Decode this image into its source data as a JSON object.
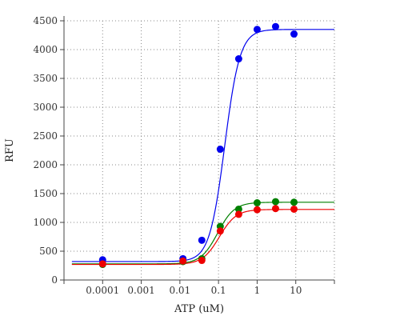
{
  "chart_data": {
    "type": "scatter",
    "title": "",
    "xlabel": "ATP (uM)",
    "ylabel": "RFU",
    "xscale": "log",
    "xlim": [
      1e-05,
      100
    ],
    "ylim": [
      0,
      4500
    ],
    "grid": true,
    "x_tick_labels": [
      "0.0001",
      "0.001",
      "0.01",
      "0.1",
      "1",
      "10"
    ],
    "y_ticks": [
      0,
      500,
      1000,
      1500,
      2000,
      2500,
      3000,
      3500,
      4000,
      4500
    ],
    "series": [
      {
        "color": "#0000ee",
        "x": [
          0.0001,
          0.012,
          0.037,
          0.111,
          0.333,
          1,
          3,
          9
        ],
        "y": [
          350,
          370,
          690,
          2270,
          3840,
          4350,
          4400,
          4270
        ],
        "fit": {
          "bottom": 320,
          "top": 4350,
          "ec50": 0.145,
          "hill": 2.2
        }
      },
      {
        "color": "#008000",
        "x": [
          0.0001,
          0.012,
          0.037,
          0.111,
          0.333,
          1,
          3,
          9
        ],
        "y": [
          270,
          320,
          370,
          930,
          1230,
          1340,
          1360,
          1350
        ],
        "fit": {
          "bottom": 280,
          "top": 1350,
          "ec50": 0.095,
          "hill": 2.0
        }
      },
      {
        "color": "#ee0000",
        "x": [
          0.0001,
          0.012,
          0.037,
          0.111,
          0.333,
          1,
          3,
          9
        ],
        "y": [
          280,
          330,
          340,
          850,
          1140,
          1220,
          1240,
          1230
        ],
        "fit": {
          "bottom": 270,
          "top": 1225,
          "ec50": 0.105,
          "hill": 2.0
        }
      }
    ]
  }
}
